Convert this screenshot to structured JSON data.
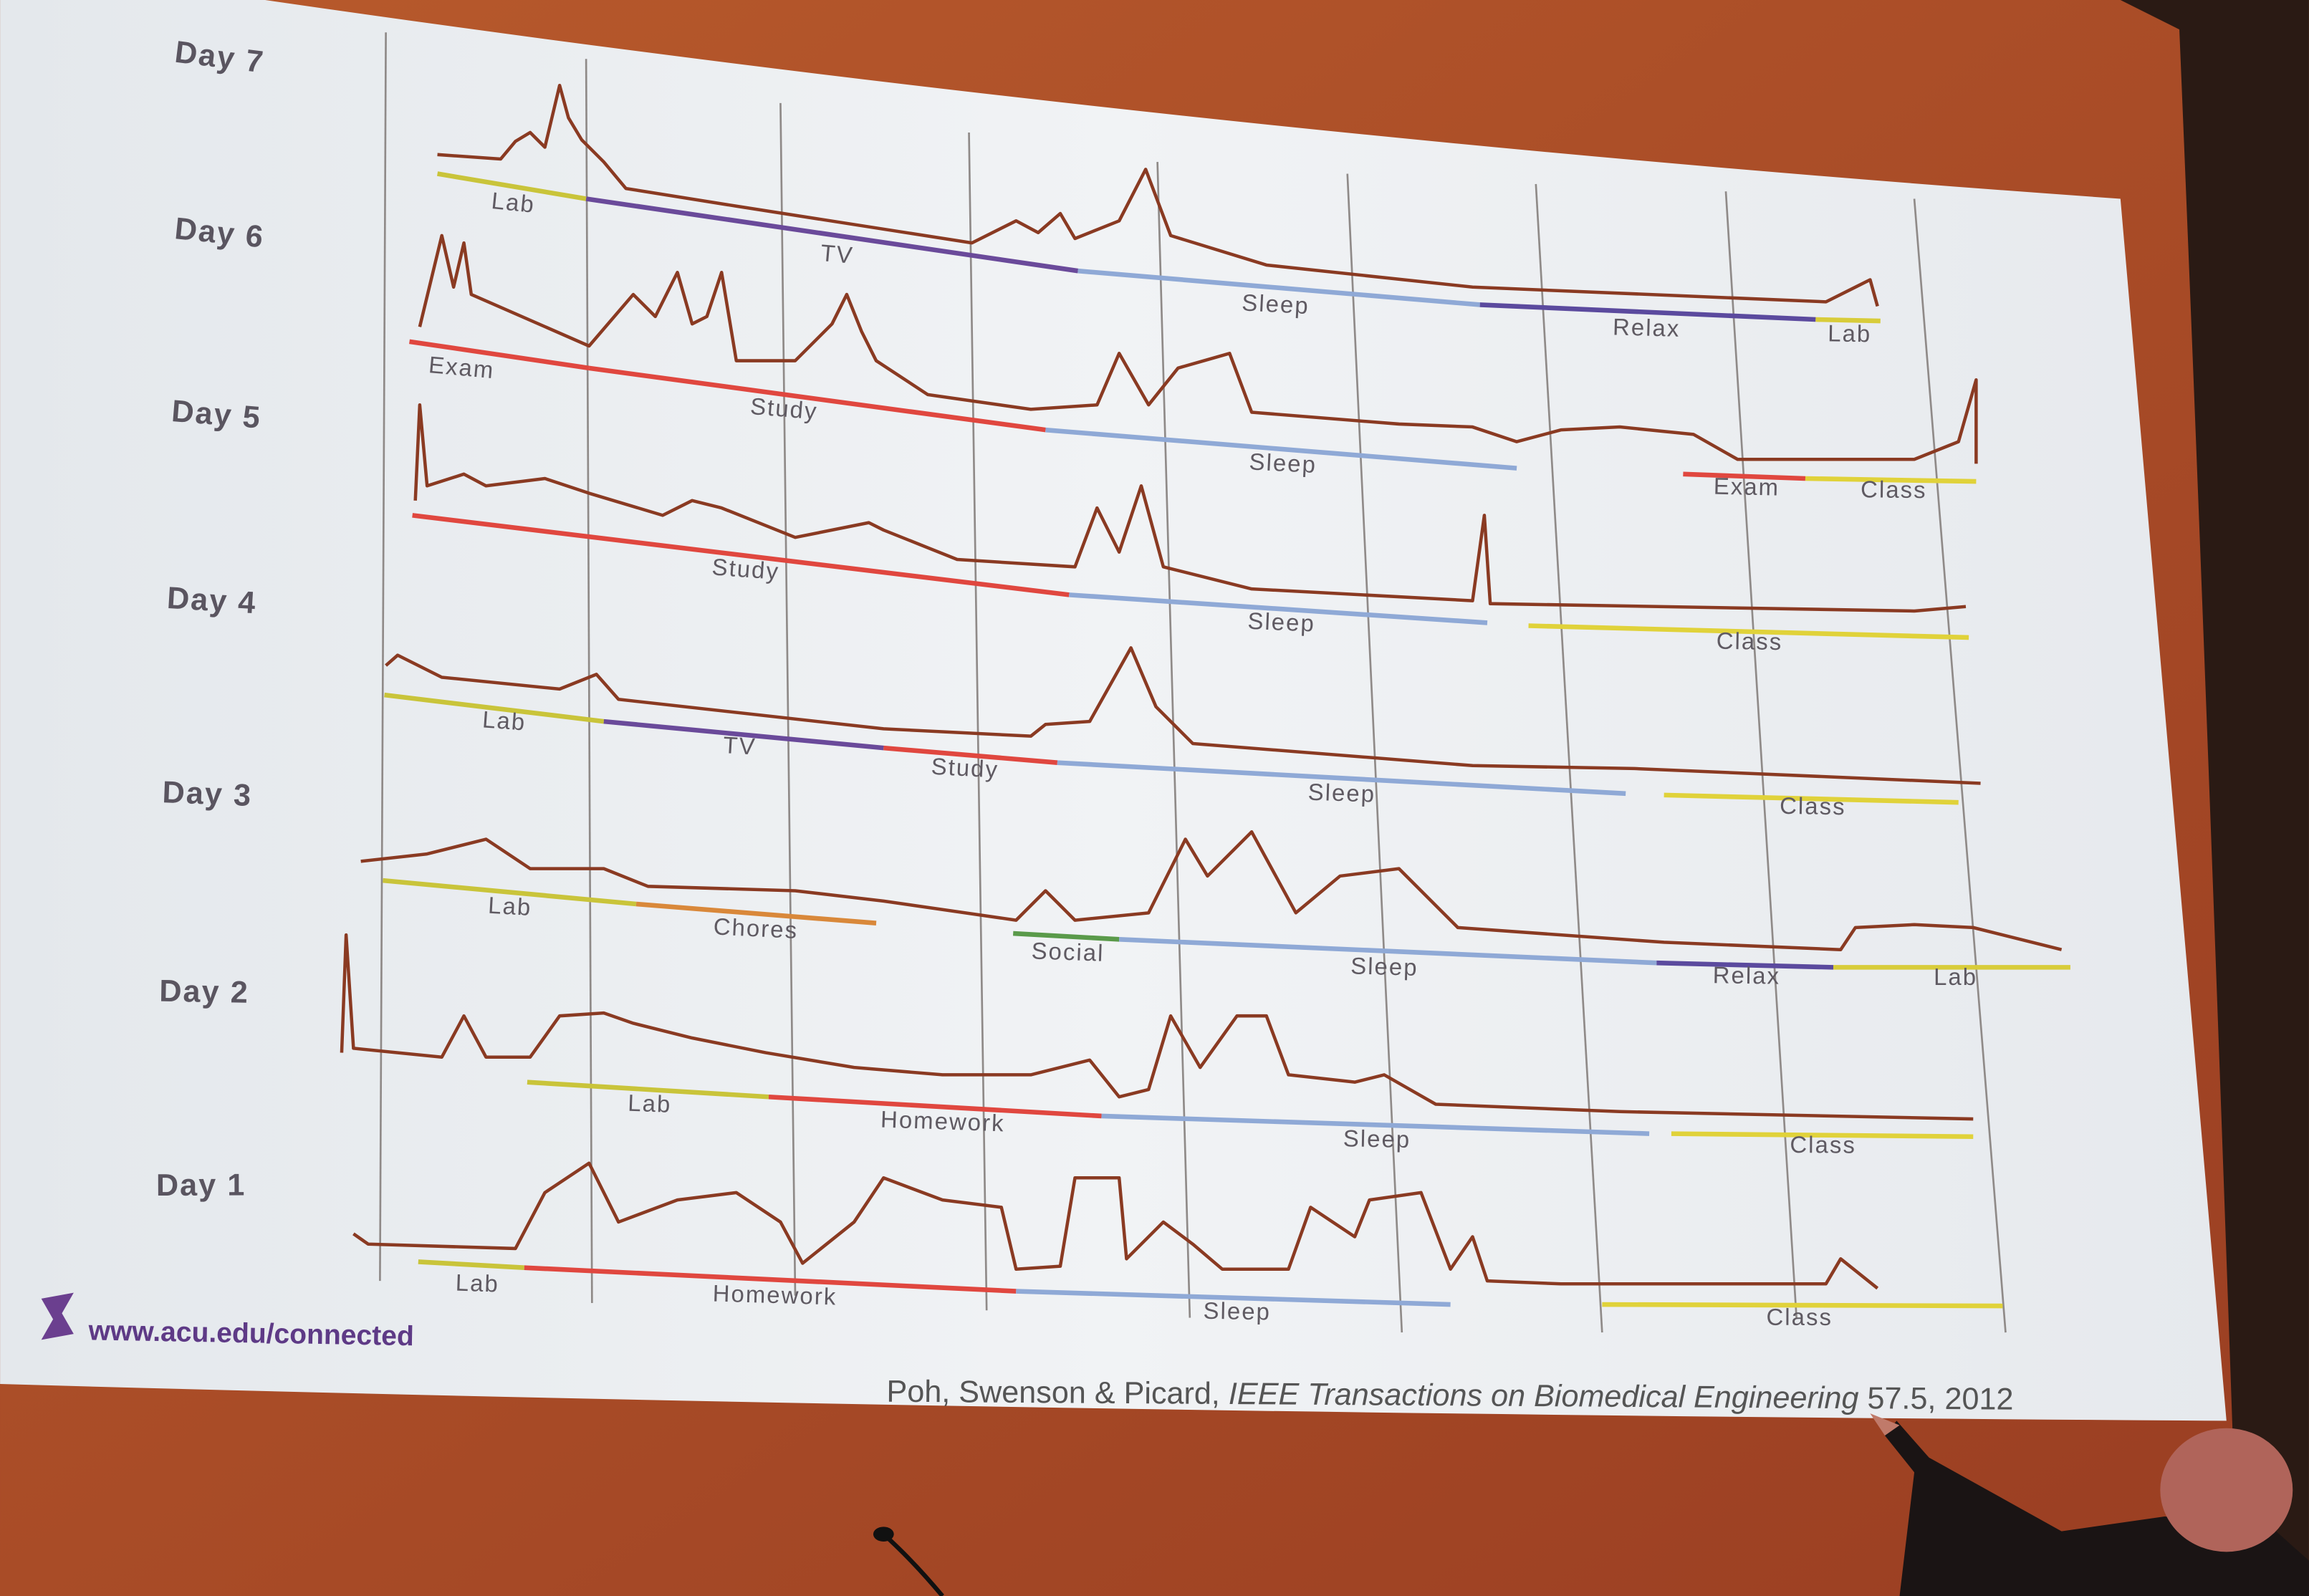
{
  "days": [
    {
      "label": "Day 7",
      "segments": [
        {
          "label": "Lab",
          "color": "#c9c43a"
        },
        {
          "label": "TV",
          "color": "#6a4a9a"
        },
        {
          "label": "Sleep",
          "color": "#8fa9d6"
        },
        {
          "label": "Relax",
          "color": "#5b4a9e"
        },
        {
          "label": "Lab",
          "color": "#d8cc3a"
        }
      ]
    },
    {
      "label": "Day 6",
      "segments": [
        {
          "label": "Exam",
          "color": "#e0473f"
        },
        {
          "label": "Study",
          "color": "#e0473f"
        },
        {
          "label": "Sleep",
          "color": "#8fa9d6"
        },
        {
          "label": "Exam",
          "color": "#e0473f"
        },
        {
          "label": "Class",
          "color": "#e0d23a"
        }
      ]
    },
    {
      "label": "Day 5",
      "segments": [
        {
          "label": "Study",
          "color": "#e0473f"
        },
        {
          "label": "Sleep",
          "color": "#8fa9d6"
        },
        {
          "label": "Class",
          "color": "#e0d23a"
        }
      ]
    },
    {
      "label": "Day 4",
      "segments": [
        {
          "label": "Lab",
          "color": "#c9c43a"
        },
        {
          "label": "TV",
          "color": "#6a4a9a"
        },
        {
          "label": "Study",
          "color": "#e0473f"
        },
        {
          "label": "Sleep",
          "color": "#8fa9d6"
        },
        {
          "label": "Class",
          "color": "#e0d23a"
        }
      ]
    },
    {
      "label": "Day 3",
      "segments": [
        {
          "label": "Lab",
          "color": "#c9c43a"
        },
        {
          "label": "Chores",
          "color": "#d9883a"
        },
        {
          "label": "Social",
          "color": "#5a9a4a"
        },
        {
          "label": "Sleep",
          "color": "#8fa9d6"
        },
        {
          "label": "Relax",
          "color": "#5b4a9e"
        },
        {
          "label": "Lab",
          "color": "#d8cc3a"
        }
      ]
    },
    {
      "label": "Day 2",
      "segments": [
        {
          "label": "Lab",
          "color": "#c9c43a"
        },
        {
          "label": "Homework",
          "color": "#e0473f"
        },
        {
          "label": "Sleep",
          "color": "#8fa9d6"
        },
        {
          "label": "Class",
          "color": "#e0d23a"
        }
      ]
    },
    {
      "label": "Day 1",
      "segments": [
        {
          "label": "Lab",
          "color": "#c9c43a"
        },
        {
          "label": "Homework",
          "color": "#e0473f"
        },
        {
          "label": "Sleep",
          "color": "#8fa9d6"
        },
        {
          "label": "Class",
          "color": "#e0d23a"
        }
      ]
    }
  ],
  "footer": {
    "url": "www.acu.edu/connected"
  },
  "citation": {
    "authors": "Poh, Swenson & Picard,",
    "journal": "IEEE Transactions on Biomedical Engineering",
    "issue": "57.5, 2012"
  }
}
